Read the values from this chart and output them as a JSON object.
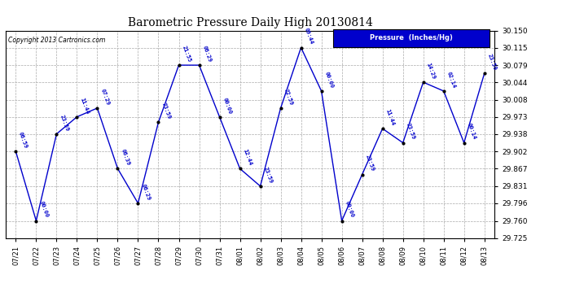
{
  "title": "Barometric Pressure Daily High 20130814",
  "copyright": "Copyright 2013 Cartronics.com",
  "legend_label": "Pressure  (Inches/Hg)",
  "dates": [
    "07/21",
    "07/22",
    "07/23",
    "07/24",
    "07/25",
    "07/26",
    "07/27",
    "07/28",
    "07/29",
    "07/30",
    "07/31",
    "08/01",
    "08/02",
    "08/03",
    "08/04",
    "08/05",
    "08/06",
    "08/07",
    "08/08",
    "08/09",
    "08/10",
    "08/11",
    "08/12",
    "08/13"
  ],
  "values": [
    29.902,
    29.76,
    29.938,
    29.973,
    29.991,
    29.867,
    29.796,
    29.962,
    30.079,
    30.079,
    29.973,
    29.867,
    29.831,
    29.991,
    30.115,
    30.026,
    29.76,
    29.855,
    29.949,
    29.92,
    30.044,
    30.026,
    29.92,
    30.062
  ],
  "point_labels": [
    "06:59",
    "00:00",
    "23:59",
    "11:44",
    "07:29",
    "06:39",
    "06:29",
    "23:59",
    "21:55",
    "06:29",
    "00:00",
    "12:44",
    "23:59",
    "22:59",
    "09:44",
    "00:00",
    "00:00",
    "23:59",
    "11:44",
    "23:59",
    "14:29",
    "02:14",
    "00:14",
    "23:59"
  ],
  "ylim_min": 29.725,
  "ylim_max": 30.15,
  "yticks": [
    29.725,
    29.76,
    29.796,
    29.831,
    29.867,
    29.902,
    29.938,
    29.973,
    30.008,
    30.044,
    30.079,
    30.115,
    30.15
  ],
  "line_color": "#0000cc",
  "marker_color": "#000000",
  "label_color": "#0000cc",
  "background_color": "#ffffff",
  "grid_color": "#aaaaaa",
  "title_color": "#000000",
  "legend_bg": "#0000cc",
  "legend_text_color": "#ffffff",
  "figwidth": 6.9,
  "figheight": 3.75,
  "dpi": 100
}
